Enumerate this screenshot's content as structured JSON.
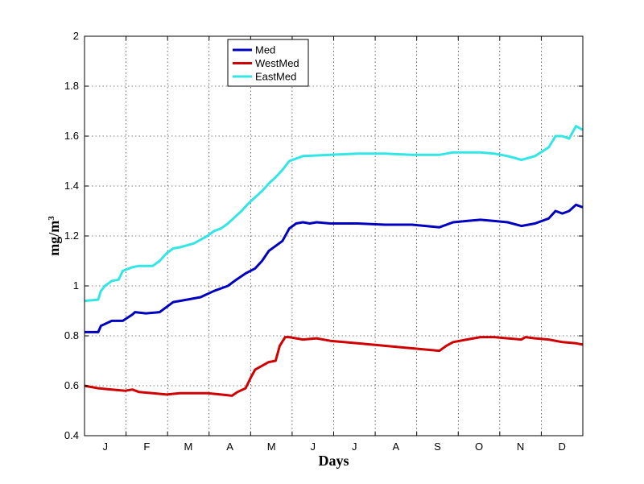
{
  "chart_data": {
    "type": "line",
    "xlabel": "Days",
    "ylabel": "mg/m",
    "ylabel_superscript": "3",
    "ylim": [
      0.4,
      2
    ],
    "yticks": [
      0.4,
      0.6,
      0.8,
      1,
      1.2,
      1.4,
      1.6,
      1.8,
      2
    ],
    "ytick_labels": [
      "0.4",
      "0.6",
      "0.8",
      "1",
      "1.2",
      "1.4",
      "1.6",
      "1.8",
      "2"
    ],
    "xlim": [
      0,
      365
    ],
    "month_labels": [
      "J",
      "F",
      "M",
      "A",
      "M",
      "J",
      "J",
      "A",
      "S",
      "O",
      "N",
      "D"
    ],
    "grid": true,
    "legend_position": "top-left",
    "series": [
      {
        "name": "Med",
        "color": "#0000c0",
        "x": [
          0,
          10,
          12,
          20,
          28,
          35,
          37,
          45,
          55,
          65,
          70,
          75,
          85,
          95,
          100,
          105,
          110,
          118,
          125,
          130,
          135,
          140,
          145,
          150,
          155,
          160,
          165,
          170,
          180,
          200,
          220,
          240,
          260,
          270,
          280,
          290,
          300,
          310,
          320,
          330,
          340,
          345,
          350,
          355,
          360,
          365
        ],
        "y": [
          0.815,
          0.815,
          0.84,
          0.86,
          0.86,
          0.885,
          0.895,
          0.89,
          0.895,
          0.935,
          0.94,
          0.945,
          0.955,
          0.98,
          0.99,
          1.0,
          1.02,
          1.05,
          1.07,
          1.1,
          1.14,
          1.16,
          1.18,
          1.23,
          1.25,
          1.255,
          1.25,
          1.255,
          1.25,
          1.25,
          1.245,
          1.245,
          1.235,
          1.255,
          1.26,
          1.265,
          1.26,
          1.255,
          1.24,
          1.25,
          1.27,
          1.3,
          1.29,
          1.3,
          1.325,
          1.315
        ]
      },
      {
        "name": "WestMed",
        "color": "#d00000",
        "x": [
          0,
          10,
          20,
          30,
          35,
          40,
          50,
          60,
          70,
          80,
          90,
          100,
          108,
          112,
          118,
          122,
          125,
          130,
          135,
          140,
          143,
          147,
          150,
          160,
          170,
          180,
          200,
          220,
          240,
          260,
          265,
          270,
          280,
          290,
          300,
          310,
          320,
          323,
          330,
          340,
          350,
          360,
          365
        ],
        "y": [
          0.6,
          0.59,
          0.585,
          0.58,
          0.585,
          0.575,
          0.57,
          0.565,
          0.57,
          0.57,
          0.57,
          0.565,
          0.56,
          0.575,
          0.59,
          0.635,
          0.665,
          0.68,
          0.695,
          0.7,
          0.76,
          0.795,
          0.795,
          0.785,
          0.79,
          0.78,
          0.77,
          0.76,
          0.75,
          0.74,
          0.76,
          0.775,
          0.785,
          0.795,
          0.795,
          0.79,
          0.785,
          0.795,
          0.79,
          0.785,
          0.775,
          0.77,
          0.765
        ]
      },
      {
        "name": "EastMed",
        "color": "#33e6e6",
        "x": [
          0,
          10,
          12,
          15,
          20,
          25,
          28,
          35,
          40,
          50,
          55,
          60,
          65,
          70,
          80,
          90,
          95,
          100,
          105,
          110,
          115,
          120,
          125,
          130,
          135,
          140,
          145,
          150,
          160,
          180,
          200,
          220,
          240,
          260,
          270,
          280,
          290,
          300,
          310,
          320,
          330,
          340,
          345,
          350,
          355,
          360,
          365
        ],
        "y": [
          0.94,
          0.945,
          0.98,
          1.0,
          1.02,
          1.025,
          1.06,
          1.075,
          1.08,
          1.08,
          1.1,
          1.13,
          1.15,
          1.155,
          1.17,
          1.2,
          1.22,
          1.23,
          1.25,
          1.275,
          1.3,
          1.33,
          1.355,
          1.38,
          1.41,
          1.435,
          1.465,
          1.5,
          1.52,
          1.525,
          1.53,
          1.53,
          1.525,
          1.525,
          1.535,
          1.535,
          1.535,
          1.53,
          1.52,
          1.505,
          1.52,
          1.555,
          1.6,
          1.6,
          1.59,
          1.64,
          1.625
        ]
      }
    ]
  }
}
